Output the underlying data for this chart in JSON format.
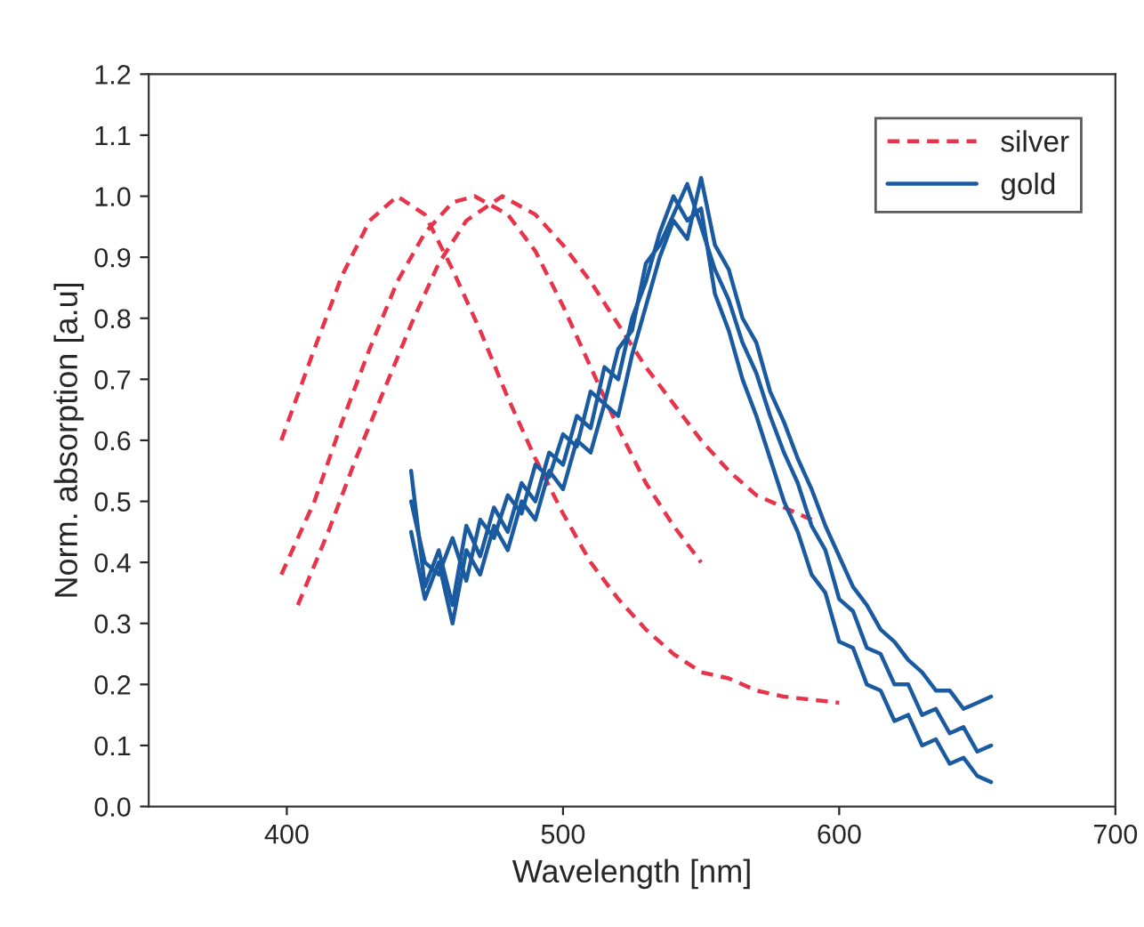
{
  "chart_data": {
    "type": "line",
    "xlabel": "Wavelength [nm]",
    "ylabel": "Norm. absorption [a.u]",
    "xlim": [
      350,
      700
    ],
    "ylim": [
      0,
      1.2
    ],
    "xticks": [
      400,
      500,
      600,
      700
    ],
    "yticks": [
      {
        "value": 0,
        "label": "0.0"
      },
      {
        "value": 0.1,
        "label": "0.1"
      },
      {
        "value": 0.2,
        "label": "0.2"
      },
      {
        "value": 0.3,
        "label": "0.3"
      },
      {
        "value": 0.4,
        "label": "0.4"
      },
      {
        "value": 0.5,
        "label": "0.5"
      },
      {
        "value": 0.6,
        "label": "0.6"
      },
      {
        "value": 0.7,
        "label": "0.7"
      },
      {
        "value": 0.8,
        "label": "0.8"
      },
      {
        "value": 0.9,
        "label": "0.9"
      },
      {
        "value": 1.0,
        "label": "1.0"
      },
      {
        "value": 1.1,
        "label": "1.1"
      },
      {
        "value": 1.2,
        "label": "1.2"
      }
    ],
    "grid": false,
    "legend": "top right",
    "marker": "none",
    "series": [
      {
        "name": "silver",
        "color": "#e8344a",
        "line_style": "dashed",
        "x": [
          398,
          410,
          420,
          430,
          440,
          450,
          460,
          470,
          480,
          490,
          500,
          510,
          520,
          530,
          540,
          550,
          560,
          570,
          580,
          600
        ],
        "values": [
          0.6,
          0.75,
          0.87,
          0.96,
          1.0,
          0.97,
          0.88,
          0.78,
          0.67,
          0.57,
          0.48,
          0.4,
          0.34,
          0.29,
          0.25,
          0.22,
          0.21,
          0.19,
          0.18,
          0.17
        ]
      },
      {
        "color": "#e8344a",
        "line_style": "dashed",
        "x": [
          398,
          410,
          420,
          430,
          440,
          450,
          460,
          468,
          480,
          490,
          500,
          510,
          520,
          530,
          540,
          550
        ],
        "values": [
          0.38,
          0.5,
          0.63,
          0.75,
          0.86,
          0.94,
          0.99,
          1.0,
          0.97,
          0.91,
          0.82,
          0.72,
          0.62,
          0.53,
          0.46,
          0.4
        ]
      },
      {
        "color": "#e8344a",
        "line_style": "dashed",
        "x": [
          404,
          415,
          425,
          435,
          445,
          455,
          465,
          478,
          490,
          500,
          510,
          520,
          530,
          540,
          550,
          560,
          570,
          590
        ],
        "values": [
          0.33,
          0.45,
          0.57,
          0.68,
          0.79,
          0.89,
          0.96,
          1.0,
          0.97,
          0.92,
          0.86,
          0.79,
          0.72,
          0.66,
          0.6,
          0.55,
          0.51,
          0.47
        ]
      },
      {
        "name": "gold",
        "color": "#1a5aa0",
        "line_style": "solid",
        "x": [
          445,
          450,
          455,
          460,
          465,
          470,
          475,
          480,
          485,
          490,
          495,
          500,
          505,
          510,
          515,
          520,
          525,
          530,
          535,
          540,
          545,
          550,
          555,
          560,
          565,
          570,
          575,
          580,
          585,
          590,
          595,
          600,
          605,
          610,
          615,
          620,
          625,
          630,
          635,
          640,
          645,
          650,
          655
        ],
        "values": [
          0.55,
          0.36,
          0.42,
          0.33,
          0.46,
          0.41,
          0.49,
          0.45,
          0.53,
          0.5,
          0.58,
          0.56,
          0.64,
          0.62,
          0.72,
          0.7,
          0.8,
          0.86,
          0.94,
          1.0,
          0.96,
          0.98,
          0.84,
          0.78,
          0.7,
          0.64,
          0.57,
          0.5,
          0.45,
          0.38,
          0.35,
          0.27,
          0.26,
          0.2,
          0.19,
          0.14,
          0.15,
          0.1,
          0.11,
          0.07,
          0.08,
          0.05,
          0.04
        ]
      },
      {
        "color": "#1a5aa0",
        "line_style": "solid",
        "x": [
          445,
          450,
          455,
          460,
          465,
          470,
          475,
          480,
          485,
          490,
          495,
          500,
          505,
          510,
          515,
          520,
          525,
          530,
          535,
          540,
          545,
          550,
          555,
          560,
          565,
          570,
          575,
          580,
          585,
          590,
          595,
          600,
          605,
          610,
          615,
          620,
          625,
          630,
          635,
          640,
          645,
          650,
          655
        ],
        "values": [
          0.5,
          0.4,
          0.38,
          0.44,
          0.37,
          0.47,
          0.44,
          0.51,
          0.48,
          0.56,
          0.54,
          0.61,
          0.59,
          0.68,
          0.66,
          0.75,
          0.78,
          0.89,
          0.92,
          0.97,
          1.02,
          0.95,
          0.88,
          0.83,
          0.76,
          0.71,
          0.64,
          0.58,
          0.53,
          0.46,
          0.42,
          0.34,
          0.32,
          0.26,
          0.25,
          0.2,
          0.2,
          0.15,
          0.16,
          0.12,
          0.13,
          0.09,
          0.1
        ]
      },
      {
        "color": "#1a5aa0",
        "line_style": "solid",
        "x": [
          445,
          450,
          455,
          460,
          465,
          470,
          475,
          480,
          485,
          490,
          495,
          500,
          505,
          510,
          515,
          520,
          525,
          530,
          535,
          540,
          545,
          550,
          555,
          560,
          565,
          570,
          575,
          580,
          585,
          590,
          595,
          600,
          605,
          610,
          615,
          620,
          625,
          630,
          635,
          640,
          645,
          650,
          655
        ],
        "values": [
          0.45,
          0.34,
          0.4,
          0.3,
          0.42,
          0.38,
          0.46,
          0.42,
          0.5,
          0.47,
          0.55,
          0.52,
          0.6,
          0.58,
          0.66,
          0.64,
          0.74,
          0.82,
          0.9,
          0.96,
          0.93,
          1.03,
          0.92,
          0.88,
          0.8,
          0.76,
          0.68,
          0.63,
          0.57,
          0.52,
          0.46,
          0.41,
          0.36,
          0.33,
          0.29,
          0.27,
          0.24,
          0.22,
          0.19,
          0.19,
          0.16,
          0.17,
          0.18
        ]
      }
    ]
  }
}
